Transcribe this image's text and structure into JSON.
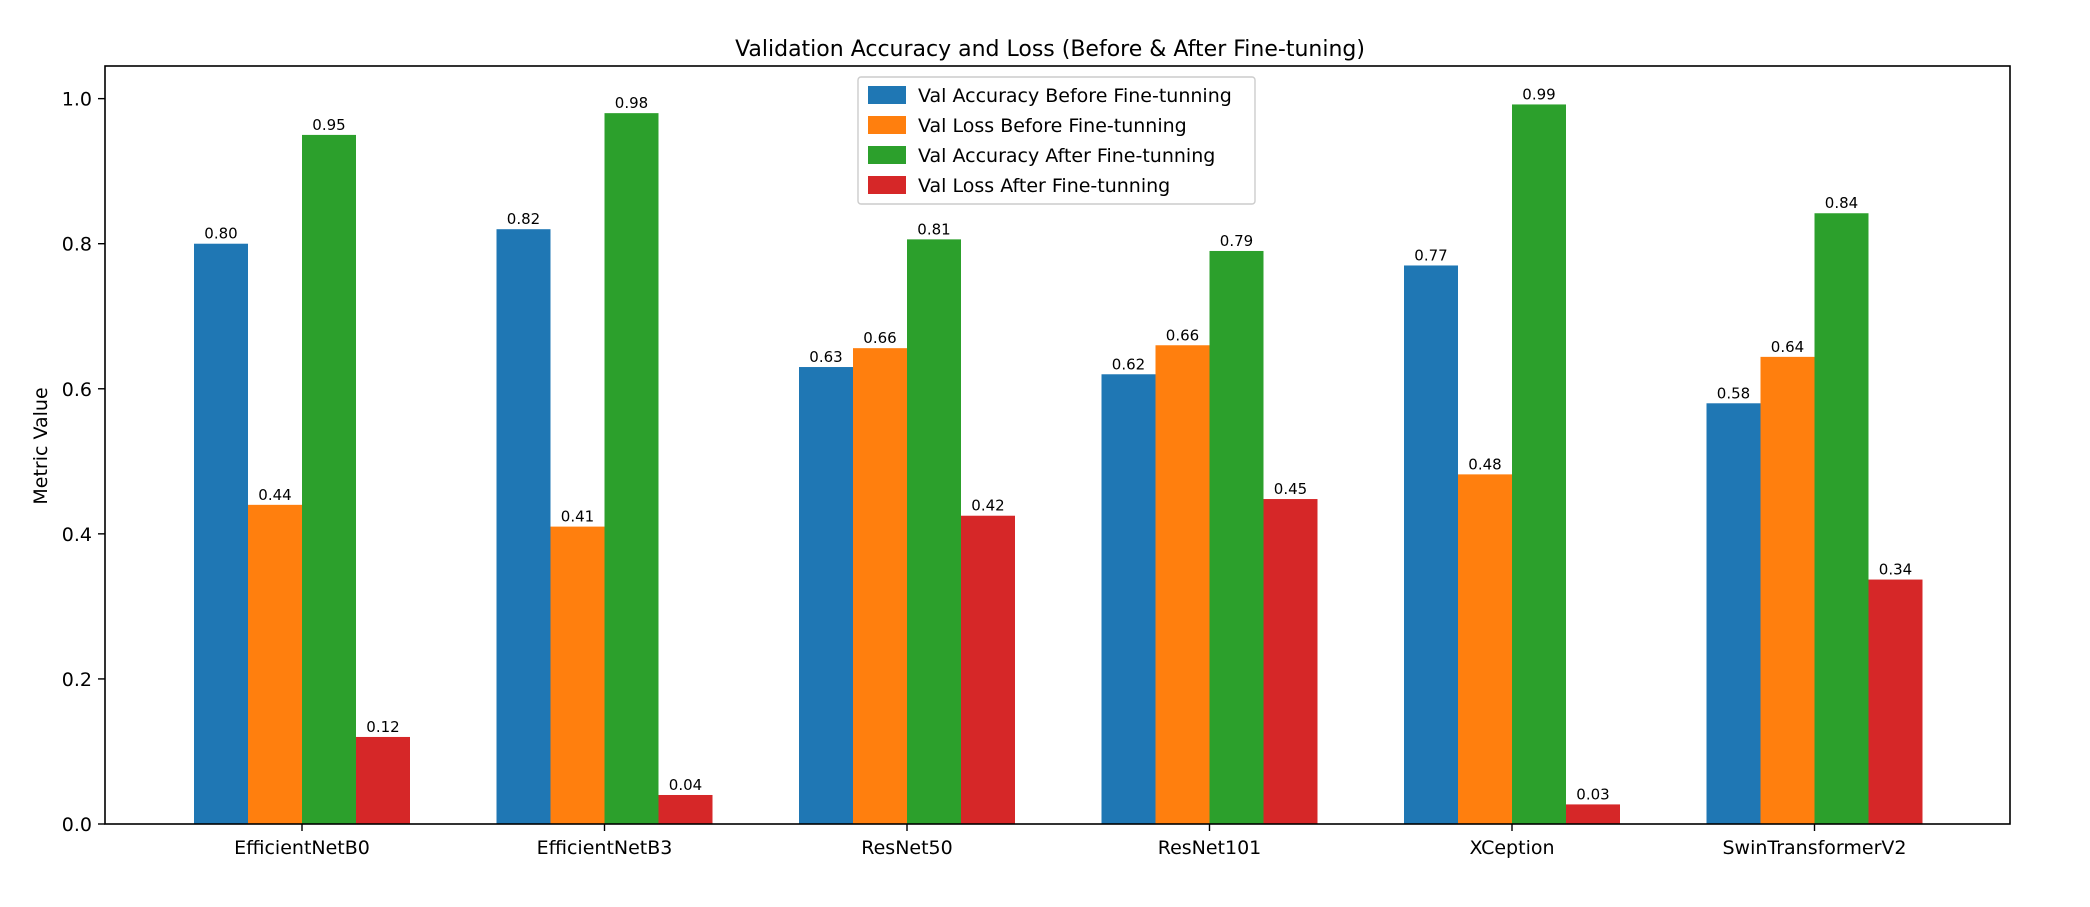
{
  "chart_data": {
    "type": "bar",
    "title": "Validation Accuracy and Loss (Before & After Fine-tuning)",
    "xlabel": "",
    "ylabel": "Metric Value",
    "ylim": [
      0,
      1.045
    ],
    "yticks": [
      0.0,
      0.2,
      0.4,
      0.6,
      0.8,
      1.0
    ],
    "ytick_labels": [
      "0.0",
      "0.2",
      "0.4",
      "0.6",
      "0.8",
      "1.0"
    ],
    "categories": [
      "EfficientNetB0",
      "EfficientNetB3",
      "ResNet50",
      "ResNet101",
      "XCeption",
      "SwinTransformerV2"
    ],
    "series": [
      {
        "name": "Val Accuracy Before Fine-tunning",
        "color": "#1f77b4",
        "values": [
          0.8,
          0.82,
          0.63,
          0.62,
          0.77,
          0.58
        ],
        "labels": [
          "0.80",
          "0.82",
          "0.63",
          "0.62",
          "0.77",
          "0.58"
        ]
      },
      {
        "name": "Val Loss Before Fine-tunning",
        "color": "#ff7f0e",
        "values": [
          0.44,
          0.41,
          0.656,
          0.66,
          0.482,
          0.644
        ],
        "labels": [
          "0.44",
          "0.41",
          "0.66",
          "0.66",
          "0.48",
          "0.64"
        ]
      },
      {
        "name": "Val Accuracy After Fine-tunning",
        "color": "#2ca02c",
        "values": [
          0.95,
          0.98,
          0.806,
          0.79,
          0.992,
          0.842
        ],
        "labels": [
          "0.95",
          "0.98",
          "0.81",
          "0.79",
          "0.99",
          "0.84"
        ]
      },
      {
        "name": "Val Loss After Fine-tunning",
        "color": "#d62728",
        "values": [
          0.12,
          0.04,
          0.425,
          0.448,
          0.027,
          0.337
        ],
        "labels": [
          "0.12",
          "0.04",
          "0.42",
          "0.45",
          "0.03",
          "0.34"
        ]
      }
    ],
    "grid": false,
    "legend_position": "top-center"
  }
}
